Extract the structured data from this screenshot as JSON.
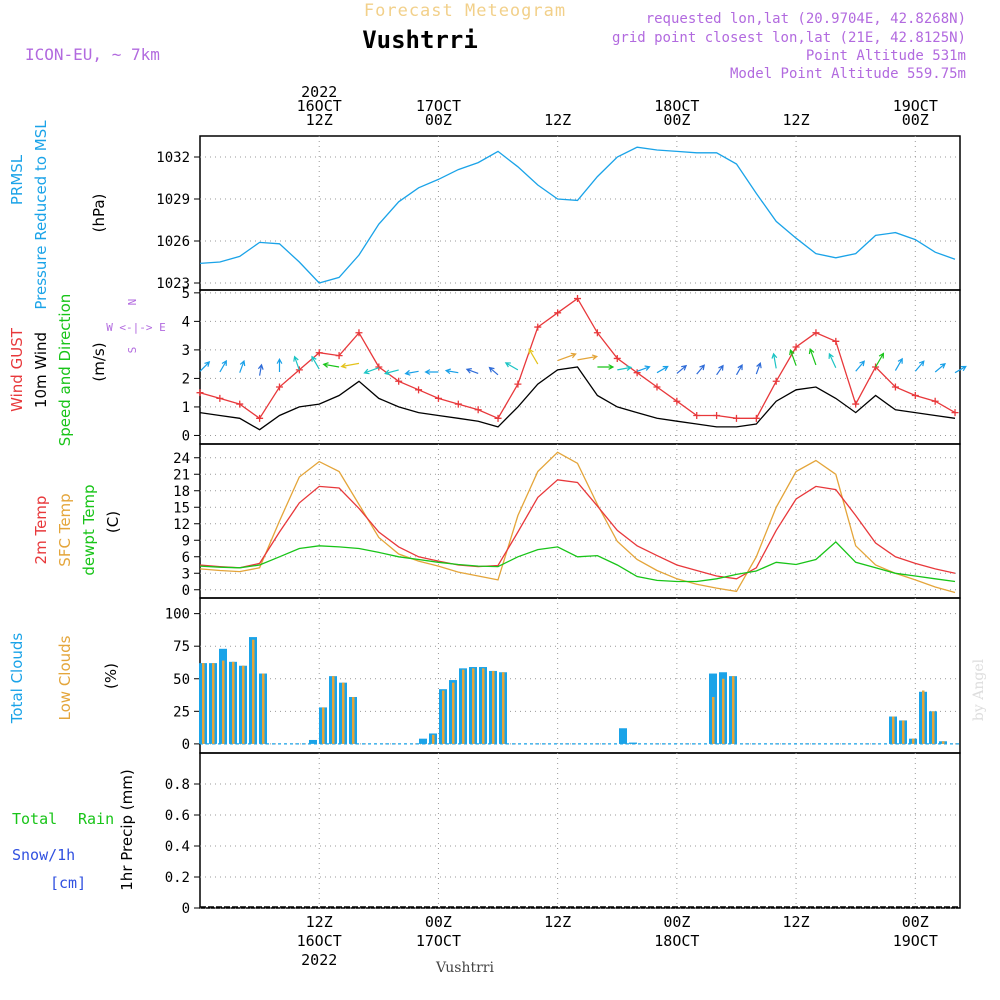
{
  "header": {
    "banner": "Forecast Meteogram",
    "station": "Vushtrri",
    "model": "ICON-EU, ~ 7km",
    "requested": "requested lon,lat (20.9704E, 42.8268N)",
    "gridpoint": "grid point closest lon,lat (21E, 42.8125N)",
    "point_alt": "Point Altitude 531m",
    "model_alt": "Model Point Altitude 559.75m",
    "footer_station": "Vushtrri",
    "credit": "by Angel"
  },
  "time_axis": {
    "top": [
      {
        "t": 12,
        "lines": [
          "2022",
          "16OCT",
          "12Z"
        ]
      },
      {
        "t": 24,
        "lines": [
          "17OCT",
          "00Z"
        ]
      },
      {
        "t": 36,
        "lines": [
          "12Z"
        ]
      },
      {
        "t": 48,
        "lines": [
          "18OCT",
          "00Z"
        ]
      },
      {
        "t": 60,
        "lines": [
          "12Z"
        ]
      },
      {
        "t": 72,
        "lines": [
          "19OCT",
          "00Z"
        ]
      }
    ],
    "bottom": [
      {
        "t": 12,
        "lines": [
          "12Z",
          "16OCT",
          "2022"
        ]
      },
      {
        "t": 24,
        "lines": [
          "00Z",
          "17OCT"
        ]
      },
      {
        "t": 36,
        "lines": [
          "12Z"
        ]
      },
      {
        "t": 48,
        "lines": [
          "00Z",
          "18OCT"
        ]
      },
      {
        "t": 60,
        "lines": [
          "12Z"
        ]
      },
      {
        "t": 72,
        "lines": [
          "00Z",
          "19OCT"
        ]
      }
    ]
  },
  "panel_labels": {
    "p1": [
      {
        "text": "PRMSL",
        "color": "#1aa3e8"
      },
      {
        "text": "Pressure Reduced to MSL",
        "color": "#1aa3e8"
      },
      {
        "text": "(hPa)",
        "color": "#000000"
      }
    ],
    "p2": [
      {
        "text": "Wind GUST",
        "color": "#e8383b"
      },
      {
        "text": "10m Wind",
        "color": "#000000"
      },
      {
        "text": "Speed and Direction",
        "color": "#18c418"
      },
      {
        "text": "(m/s)",
        "color": "#000000"
      }
    ],
    "p2_compass": {
      "n": "N",
      "s": "S",
      "w": "W <-|-> E"
    },
    "p3": [
      {
        "text": "2m Temp",
        "color": "#e8383b"
      },
      {
        "text": "SFC Temp",
        "color": "#e4a53a"
      },
      {
        "text": "dewpt Temp",
        "color": "#18c418"
      },
      {
        "text": "(C)",
        "color": "#000000"
      }
    ],
    "p4": [
      {
        "text": "Total Clouds",
        "color": "#1aa3e8"
      },
      {
        "text": "Low Clouds",
        "color": "#e4a53a"
      },
      {
        "text": "(%)",
        "color": "#000000"
      }
    ],
    "p5": {
      "total": "Total",
      "rain": "Rain",
      "snow": "Snow/1h",
      "cm": "[cm]",
      "ylabel": "1hr Precip (mm)"
    }
  },
  "colors": {
    "pressure": "#1aa3e8",
    "gust": "#e8383b",
    "wind": "#000000",
    "t2m": "#e8383b",
    "tsfc": "#e4a53a",
    "dewpt": "#18c418",
    "total_cloud": "#1aa3e8",
    "low_cloud": "#e4a53a",
    "purple": "#b26adf"
  },
  "chart_data": [
    {
      "type": "line",
      "name": "pressure",
      "title": "PRMSL",
      "ylabel": "(hPa)",
      "ylim": [
        1022.5,
        1033.5
      ],
      "yticks": [
        1023,
        1026,
        1029,
        1032
      ],
      "x": [
        0,
        2,
        4,
        6,
        8,
        10,
        12,
        14,
        16,
        18,
        20,
        22,
        24,
        26,
        28,
        30,
        32,
        34,
        36,
        38,
        40,
        42,
        44,
        46,
        48,
        50,
        52,
        54,
        56,
        58,
        60,
        62,
        64,
        66,
        68,
        70,
        72,
        74,
        76
      ],
      "series": [
        {
          "name": "PRMSL",
          "values": [
            1024.4,
            1024.5,
            1024.9,
            1025.9,
            1025.8,
            1024.5,
            1023.0,
            1023.4,
            1025.0,
            1027.2,
            1028.8,
            1029.8,
            1030.4,
            1031.1,
            1031.6,
            1032.4,
            1031.3,
            1030.0,
            1029.0,
            1028.9,
            1030.6,
            1032.0,
            1032.7,
            1032.5,
            1032.4,
            1032.3,
            1032.3,
            1031.5,
            1029.4,
            1027.4,
            1026.2,
            1025.1,
            1024.8,
            1025.1,
            1026.4,
            1026.6,
            1026.1,
            1025.2,
            1024.7
          ]
        }
      ]
    },
    {
      "type": "line",
      "name": "wind",
      "title": "Wind GUST / 10m Wind",
      "ylabel": "(m/s)",
      "ylim": [
        -0.3,
        5.1
      ],
      "yticks": [
        0,
        1,
        2,
        3,
        4,
        5
      ],
      "x": [
        0,
        2,
        4,
        6,
        8,
        10,
        12,
        14,
        16,
        18,
        20,
        22,
        24,
        26,
        28,
        30,
        32,
        34,
        36,
        38,
        40,
        42,
        44,
        46,
        48,
        50,
        52,
        54,
        56,
        58,
        60,
        62,
        64,
        66,
        68,
        70,
        72,
        74,
        76
      ],
      "series": [
        {
          "name": "Wind GUST",
          "values": [
            1.5,
            1.3,
            1.1,
            0.6,
            1.7,
            2.3,
            2.9,
            2.8,
            3.6,
            2.4,
            1.9,
            1.6,
            1.3,
            1.1,
            0.9,
            0.6,
            1.8,
            3.8,
            4.3,
            4.8,
            3.6,
            2.7,
            2.2,
            1.7,
            1.2,
            0.7,
            0.7,
            0.6,
            0.6,
            1.9,
            3.1,
            3.6,
            3.3,
            1.1,
            2.4,
            1.7,
            1.4,
            1.2,
            0.8
          ]
        },
        {
          "name": "10m Wind",
          "values": [
            0.8,
            0.7,
            0.6,
            0.2,
            0.7,
            1.0,
            1.1,
            1.4,
            1.9,
            1.3,
            1.0,
            0.8,
            0.7,
            0.6,
            0.5,
            0.3,
            1.0,
            1.8,
            2.3,
            2.4,
            1.4,
            1.0,
            0.8,
            0.6,
            0.5,
            0.4,
            0.3,
            0.3,
            0.4,
            1.2,
            1.6,
            1.7,
            1.3,
            0.8,
            1.4,
            0.9,
            0.8,
            0.7,
            0.6
          ]
        }
      ],
      "direction_deg": [
        225,
        210,
        200,
        190,
        180,
        160,
        150,
        100,
        80,
        70,
        75,
        80,
        90,
        100,
        110,
        130,
        120,
        150,
        250,
        260,
        270,
        260,
        250,
        240,
        230,
        220,
        215,
        210,
        200,
        170,
        160,
        160,
        155,
        220,
        210,
        210,
        220,
        230,
        240
      ]
    },
    {
      "type": "line",
      "name": "temperature",
      "title": "Temperatures",
      "ylabel": "(C)",
      "ylim": [
        -1.5,
        26.5
      ],
      "yticks": [
        0,
        3,
        6,
        9,
        12,
        15,
        18,
        21,
        24
      ],
      "x": [
        0,
        2,
        4,
        6,
        8,
        10,
        12,
        14,
        16,
        18,
        20,
        22,
        24,
        26,
        28,
        30,
        32,
        34,
        36,
        38,
        40,
        42,
        44,
        46,
        48,
        50,
        52,
        54,
        56,
        58,
        60,
        62,
        64,
        66,
        68,
        70,
        72,
        74,
        76
      ],
      "series": [
        {
          "name": "2m Temp",
          "values": [
            4.5,
            4.2,
            4.0,
            4.8,
            10.5,
            15.8,
            18.8,
            18.5,
            14.8,
            10.5,
            7.8,
            6.0,
            5.2,
            4.5,
            4.2,
            4.4,
            10.5,
            16.8,
            20.0,
            19.5,
            15.2,
            10.8,
            8.0,
            6.2,
            4.5,
            3.5,
            2.5,
            2.0,
            4.0,
            10.8,
            16.5,
            18.8,
            18.2,
            13.5,
            8.5,
            6.0,
            4.8,
            3.8,
            3.0
          ]
        },
        {
          "name": "SFC Temp",
          "values": [
            3.8,
            3.5,
            3.3,
            4.0,
            12.5,
            20.5,
            23.3,
            21.5,
            15.5,
            9.5,
            6.5,
            5.2,
            4.3,
            3.2,
            2.5,
            1.8,
            13.5,
            21.5,
            25.0,
            23.0,
            15.5,
            8.8,
            5.5,
            3.5,
            2.0,
            1.0,
            0.3,
            -0.3,
            6.0,
            15.0,
            21.5,
            23.5,
            21.0,
            8.0,
            4.5,
            3.0,
            1.8,
            0.5,
            -0.5
          ]
        },
        {
          "name": "dewpt Temp",
          "values": [
            4.3,
            4.1,
            4.0,
            4.5,
            6.0,
            7.5,
            8.0,
            7.8,
            7.5,
            6.8,
            6.0,
            5.5,
            5.0,
            4.6,
            4.3,
            4.2,
            6.0,
            7.3,
            7.8,
            6.0,
            6.2,
            4.5,
            2.4,
            1.7,
            1.5,
            1.5,
            2.0,
            2.8,
            3.4,
            5.0,
            4.6,
            5.5,
            8.7,
            5.0,
            4.0,
            3.0,
            2.5,
            2.0,
            1.5
          ]
        }
      ]
    },
    {
      "type": "bar",
      "name": "clouds",
      "title": "Clouds",
      "ylabel": "(%)",
      "ylim": [
        -7,
        112
      ],
      "yticks": [
        0,
        25,
        50,
        75,
        100
      ],
      "series": [
        {
          "name": "Total Clouds",
          "x": [
            0,
            1,
            2,
            3,
            4,
            5,
            6,
            11,
            12,
            13,
            14,
            15,
            22,
            23,
            24,
            25,
            26,
            27,
            28,
            29,
            30,
            42,
            43,
            51,
            52,
            53,
            69,
            70,
            71,
            72,
            73,
            74
          ],
          "values": [
            62,
            62,
            73,
            63,
            60,
            82,
            54,
            3,
            28,
            52,
            47,
            36,
            4,
            8,
            42,
            49,
            58,
            59,
            59,
            56,
            55,
            12,
            1,
            54,
            55,
            52,
            21,
            18,
            4,
            40,
            25,
            2
          ]
        },
        {
          "name": "Low Clouds",
          "x": [
            0,
            1,
            2,
            3,
            4,
            5,
            6,
            11,
            12,
            13,
            14,
            15,
            22,
            23,
            24,
            25,
            26,
            27,
            28,
            29,
            30,
            42,
            43,
            51,
            52,
            53,
            69,
            70,
            71,
            72,
            73,
            74
          ],
          "values": [
            62,
            62,
            64,
            63,
            60,
            80,
            54,
            0,
            28,
            52,
            47,
            36,
            0,
            7,
            41,
            47,
            57,
            58,
            58,
            56,
            55,
            0,
            0,
            36,
            50,
            52,
            21,
            18,
            4,
            41,
            25,
            2
          ]
        }
      ]
    },
    {
      "type": "bar",
      "name": "precip",
      "title": "1hr Precip",
      "ylabel": "1hr Precip (mm)",
      "ylim": [
        0,
        1
      ],
      "yticks": [
        0,
        0.2,
        0.4,
        0.6,
        0.8
      ],
      "series": [
        {
          "name": "Total Rain",
          "values": []
        },
        {
          "name": "Snow/1h",
          "values": []
        }
      ]
    }
  ]
}
